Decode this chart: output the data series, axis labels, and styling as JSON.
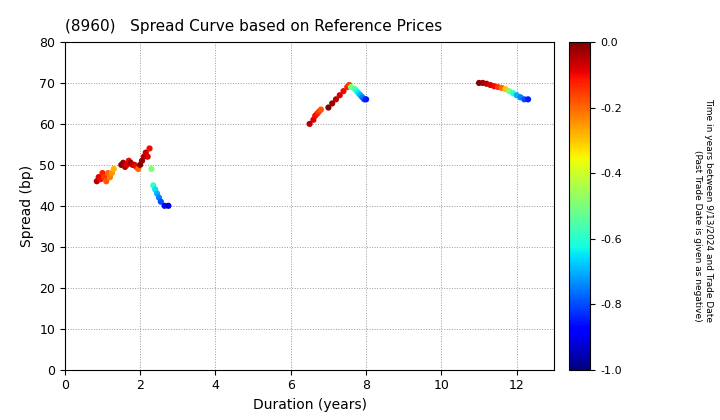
{
  "title": "(8960)   Spread Curve based on Reference Prices",
  "xlabel": "Duration (years)",
  "ylabel": "Spread (bp)",
  "xlim": [
    0,
    13
  ],
  "ylim": [
    0,
    80
  ],
  "xticks": [
    0,
    2,
    4,
    6,
    8,
    10,
    12
  ],
  "yticks": [
    0,
    10,
    20,
    30,
    40,
    50,
    60,
    70,
    80
  ],
  "colorbar_label_line1": "Time in years between 9/13/2024 and Trade Date",
  "colorbar_label_line2": "(Past Trade Date is given as negative)",
  "cmap": "jet",
  "vmin": -1.0,
  "vmax": 0.0,
  "cluster1": {
    "duration": [
      0.85,
      0.9,
      0.95,
      1.0,
      1.05,
      1.1,
      1.15,
      1.2,
      1.25,
      1.3,
      1.5,
      1.55,
      1.6,
      1.65,
      1.7,
      1.75,
      1.8,
      1.85,
      1.9,
      1.95,
      2.0,
      2.05,
      2.1,
      2.15,
      2.2,
      2.25,
      2.3,
      2.35,
      2.4,
      2.45,
      2.5,
      2.55,
      2.65,
      2.75
    ],
    "spread": [
      46,
      47,
      46.5,
      48,
      47,
      46,
      48,
      47,
      48,
      49,
      50,
      50.5,
      49.5,
      50,
      51,
      50.5,
      50,
      50,
      49.5,
      49,
      50,
      51,
      52,
      53,
      52,
      54,
      49,
      45,
      44,
      43,
      42,
      41,
      40,
      40
    ],
    "time": [
      -0.05,
      -0.08,
      -0.1,
      -0.12,
      -0.15,
      -0.18,
      -0.2,
      -0.22,
      -0.25,
      -0.28,
      -0.0,
      -0.02,
      -0.05,
      -0.08,
      -0.1,
      -0.02,
      -0.05,
      -0.08,
      -0.1,
      -0.2,
      -0.0,
      -0.02,
      -0.04,
      -0.06,
      -0.08,
      -0.1,
      -0.5,
      -0.58,
      -0.65,
      -0.7,
      -0.75,
      -0.8,
      -0.87,
      -0.92
    ]
  },
  "cluster2": {
    "duration": [
      6.5,
      6.6,
      6.65,
      6.7,
      6.75,
      6.8,
      7.0,
      7.1,
      7.2,
      7.3,
      7.4,
      7.5,
      7.55,
      7.6,
      7.7,
      7.75,
      7.8,
      7.85,
      7.9,
      7.95,
      8.0
    ],
    "spread": [
      60,
      61,
      62,
      62.5,
      63,
      63.5,
      64,
      65,
      66,
      67,
      68,
      69,
      69.5,
      69,
      68.5,
      68,
      67.5,
      67,
      66.5,
      66,
      66
    ],
    "time": [
      -0.05,
      -0.08,
      -0.1,
      -0.12,
      -0.15,
      -0.18,
      -0.0,
      -0.02,
      -0.05,
      -0.08,
      -0.1,
      -0.12,
      -0.15,
      -0.5,
      -0.55,
      -0.6,
      -0.65,
      -0.7,
      -0.75,
      -0.8,
      -0.85
    ]
  },
  "cluster3": {
    "duration": [
      11.0,
      11.1,
      11.2,
      11.3,
      11.4,
      11.5,
      11.6,
      11.7,
      11.8,
      11.9,
      12.0,
      12.1,
      12.2,
      12.3
    ],
    "spread": [
      70,
      70,
      69.8,
      69.5,
      69.2,
      69,
      68.8,
      68.5,
      68,
      67.5,
      67,
      66.5,
      66,
      66
    ],
    "time": [
      -0.0,
      -0.03,
      -0.05,
      -0.08,
      -0.1,
      -0.15,
      -0.2,
      -0.3,
      -0.5,
      -0.6,
      -0.7,
      -0.75,
      -0.8,
      -0.85
    ]
  },
  "marker_size": 20,
  "background_color": "#ffffff",
  "grid_color": "#999999"
}
